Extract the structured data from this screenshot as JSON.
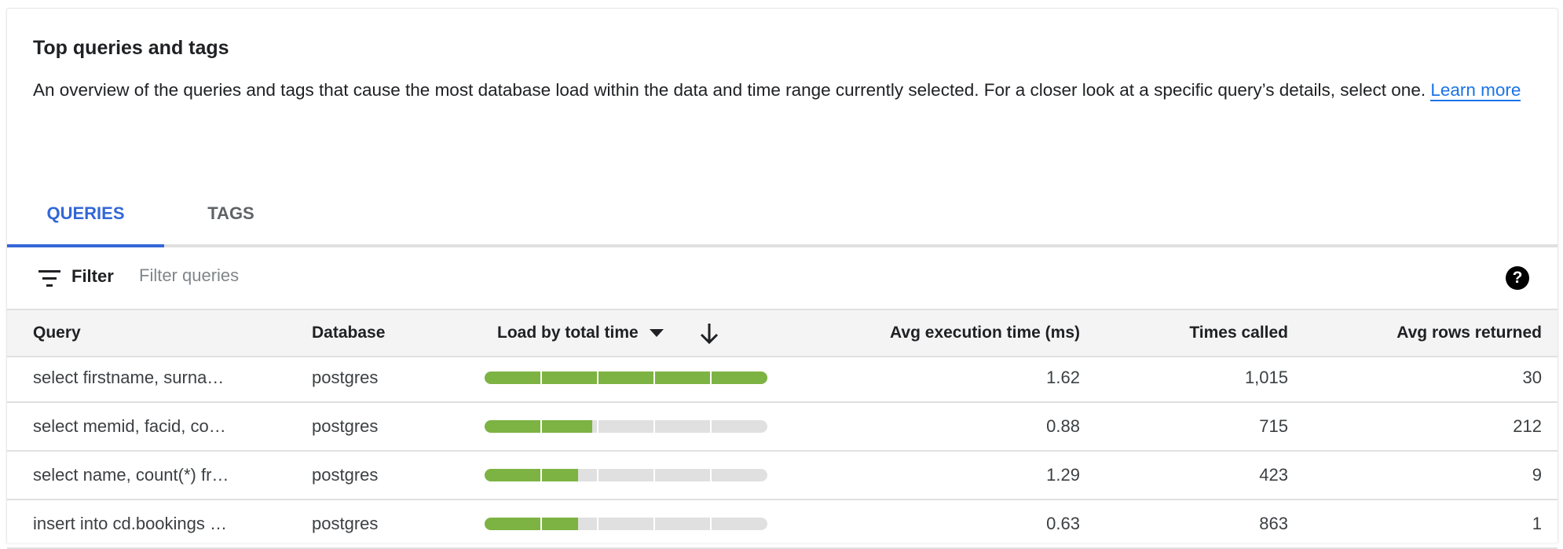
{
  "header": {
    "title": "Top queries and tags",
    "description": "An overview of the queries and tags that cause the most database load within the data and time range currently selected. For a closer look at a specific query’s details, select one.",
    "learn_more": "Learn more"
  },
  "tabs": [
    {
      "label": "QUERIES",
      "active": true
    },
    {
      "label": "TAGS",
      "active": false
    }
  ],
  "filter": {
    "label": "Filter",
    "placeholder": "Filter queries",
    "value": ""
  },
  "colors": {
    "accent": "#3367d6",
    "bar_fill": "#7cb342",
    "bar_track": "#e0e0e0"
  },
  "table": {
    "columns": {
      "query": "Query",
      "database": "Database",
      "load": "Load by total time",
      "avg_exec": "Avg execution time (ms)",
      "times_called": "Times called",
      "avg_rows": "Avg rows returned"
    },
    "sort": {
      "column": "load",
      "direction": "descending"
    },
    "rows": [
      {
        "query": "select firstname, surna…",
        "database": "postgres",
        "load_percent": 100,
        "avg_exec": "1.62",
        "times_called": "1,015",
        "avg_rows": "30"
      },
      {
        "query": "select memid, facid, co…",
        "database": "postgres",
        "load_percent": 38,
        "avg_exec": "0.88",
        "times_called": "715",
        "avg_rows": "212"
      },
      {
        "query": "select name, count(*) fr…",
        "database": "postgres",
        "load_percent": 33,
        "avg_exec": "1.29",
        "times_called": "423",
        "avg_rows": "9"
      },
      {
        "query": "insert into cd.bookings …",
        "database": "postgres",
        "load_percent": 33,
        "avg_exec": "0.63",
        "times_called": "863",
        "avg_rows": "1"
      }
    ]
  }
}
